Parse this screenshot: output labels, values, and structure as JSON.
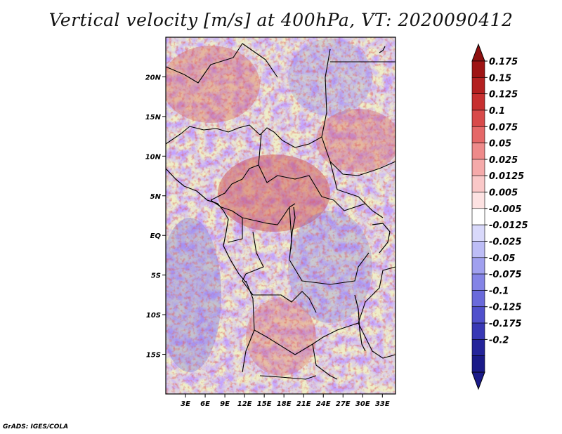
{
  "title": "Vertical velocity [m/s] at 400hPa, VT: 2020090412",
  "credit": "GrADS: IGES/COLA",
  "map": {
    "lon_range": [
      0,
      35
    ],
    "lat_range": [
      -20,
      25
    ],
    "lat_ticks": [
      {
        "label": "20N",
        "value": 20
      },
      {
        "label": "15N",
        "value": 15
      },
      {
        "label": "10N",
        "value": 10
      },
      {
        "label": "5N",
        "value": 5
      },
      {
        "label": "EQ",
        "value": 0
      },
      {
        "label": "5S",
        "value": -5
      },
      {
        "label": "10S",
        "value": -10
      },
      {
        "label": "15S",
        "value": -15
      }
    ],
    "lon_ticks": [
      {
        "label": "3E",
        "value": 3
      },
      {
        "label": "6E",
        "value": 6
      },
      {
        "label": "9E",
        "value": 9
      },
      {
        "label": "12E",
        "value": 12
      },
      {
        "label": "15E",
        "value": 15
      },
      {
        "label": "18E",
        "value": 18
      },
      {
        "label": "21E",
        "value": 21
      },
      {
        "label": "24E",
        "value": 24
      },
      {
        "label": "27E",
        "value": 27
      },
      {
        "label": "30E",
        "value": 30
      },
      {
        "label": "33E",
        "value": 33
      }
    ]
  },
  "colorbar": {
    "levels": [
      {
        "label": "0.175",
        "color": "#9e1414"
      },
      {
        "label": "0.15",
        "color": "#b32020"
      },
      {
        "label": "0.125",
        "color": "#c73030"
      },
      {
        "label": "0.1",
        "color": "#d84a4a"
      },
      {
        "label": "0.075",
        "color": "#e56868"
      },
      {
        "label": "0.05",
        "color": "#ee8a8a"
      },
      {
        "label": "0.025",
        "color": "#f5aaaa"
      },
      {
        "label": "0.0125",
        "color": "#fac8c8"
      },
      {
        "label": "0.005",
        "color": "#fde2e2"
      },
      {
        "label": "-0.005",
        "color": "#ffffff"
      },
      {
        "label": "-0.0125",
        "color": "#d9d9fb"
      },
      {
        "label": "-0.025",
        "color": "#bdbdf6"
      },
      {
        "label": "-0.05",
        "color": "#a0a0ef"
      },
      {
        "label": "-0.075",
        "color": "#8484e6"
      },
      {
        "label": "-0.1",
        "color": "#6a6adb"
      },
      {
        "label": "-0.125",
        "color": "#5050cc"
      },
      {
        "label": "-0.175",
        "color": "#3838b5"
      },
      {
        "label": "-0.2",
        "color": "#24249a"
      }
    ],
    "top_color": "#8e1010",
    "bottom_color": "#1a1a88"
  }
}
